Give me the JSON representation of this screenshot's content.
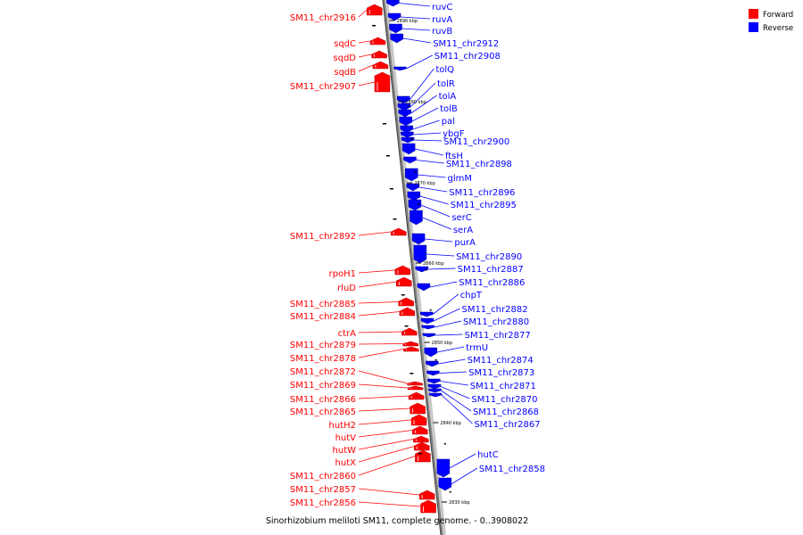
{
  "caption": "Sinorhizobium meliloti SM11, complete genome. - 0..3908022",
  "legend": [
    {
      "label": "Forward",
      "color": "#ff0000"
    },
    {
      "label": "Reverse",
      "color": "#0000ff"
    }
  ],
  "colors": {
    "forward": "#ff0000",
    "reverse": "#0000ff",
    "backbone": "#808080"
  },
  "ticks": [
    "2890 kbp",
    "2880 kbp",
    "2870 kbp",
    "2860 kbp",
    "2850 kbp",
    "2840 kbp",
    "2830 kbp"
  ],
  "forward_genes": [
    "SM11_chr2916",
    "sqdC",
    "sqdD",
    "sqdB",
    "SM11_chr2907",
    "SM11_chr2892",
    "rpoH1",
    "rluD",
    "SM11_chr2885",
    "SM11_chr2884",
    "ctrA",
    "SM11_chr2879",
    "SM11_chr2878",
    "SM11_chr2872",
    "SM11_chr2869",
    "SM11_chr2866",
    "SM11_chr2865",
    "hutH2",
    "hutV",
    "hutW",
    "hutX",
    "SM11_chr2860",
    "SM11_chr2857",
    "SM11_chr2856"
  ],
  "reverse_genes": [
    "ruvC",
    "ruvA",
    "ruvB",
    "SM11_chr2912",
    "SM11_chr2908",
    "tolQ",
    "tolR",
    "tolA",
    "tolB",
    "pal",
    "ybgF",
    "SM11_chr2900",
    "ftsH",
    "SM11_chr2898",
    "glmM",
    "SM11_chr2896",
    "SM11_chr2895",
    "serC",
    "serA",
    "purA",
    "SM11_chr2890",
    "SM11_chr2887",
    "SM11_chr2886",
    "chpT",
    "SM11_chr2882",
    "SM11_chr2880",
    "SM11_chr2877",
    "trmU",
    "SM11_chr2874",
    "SM11_chr2873",
    "SM11_chr2871",
    "SM11_chr2870",
    "SM11_chr2868",
    "SM11_chr2867",
    "hutC",
    "SM11_chr2858"
  ]
}
